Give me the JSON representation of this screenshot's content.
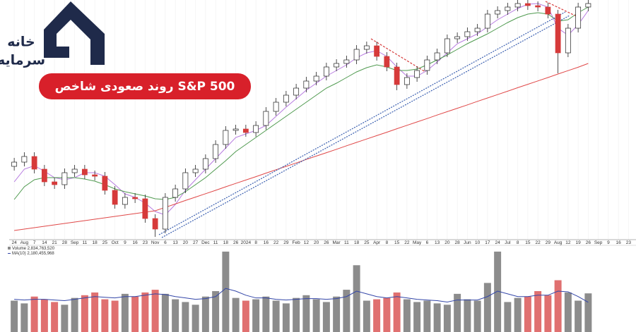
{
  "brand": {
    "line1": "خانه",
    "line2": "سرمایه"
  },
  "banner": {
    "title": "روند صعودی شاخص S&P 500"
  },
  "chart_data": {
    "type": "candlestick",
    "categories": [
      "24",
      "Aug",
      "7",
      "14",
      "21",
      "28",
      "Sep",
      "11",
      "18",
      "25",
      "Oct",
      "9",
      "16",
      "23",
      "Nov",
      "6",
      "13",
      "20",
      "27",
      "Dec",
      "11",
      "18",
      "26",
      "2024",
      "8",
      "16",
      "22",
      "29",
      "Feb",
      "12",
      "20",
      "26",
      "Mar",
      "11",
      "18",
      "25",
      "Apr",
      "8",
      "15",
      "22",
      "May",
      "6",
      "13",
      "20",
      "28",
      "Jun",
      "10",
      "17",
      "24",
      "Jul",
      "8",
      "15",
      "22",
      "29",
      "Aug",
      "12",
      "19",
      "26",
      "Sep",
      "9",
      "16",
      "23"
    ],
    "open": [
      4520,
      4550,
      4590,
      4500,
      4410,
      4390,
      4475,
      4500,
      4460,
      4450,
      4350,
      4250,
      4300,
      4290,
      4150,
      4075,
      4300,
      4360,
      4475,
      4500,
      4575,
      4675,
      4775,
      4785,
      4760,
      4810,
      4910,
      4975,
      5025,
      5075,
      5125,
      5160,
      5225,
      5250,
      5275,
      5350,
      5375,
      5300,
      5225,
      5100,
      5150,
      5200,
      5275,
      5325,
      5425,
      5440,
      5475,
      5500,
      5600,
      5625,
      5650,
      5675,
      5660,
      5650,
      5600,
      5325,
      5500,
      5650,
      null,
      null,
      null,
      null
    ],
    "high": [
      4580,
      4620,
      4620,
      4530,
      4440,
      4505,
      4530,
      4530,
      4490,
      4480,
      4380,
      4330,
      4330,
      4320,
      4180,
      4330,
      4390,
      4505,
      4530,
      4605,
      4705,
      4805,
      4815,
      4815,
      4840,
      4940,
      5005,
      5055,
      5105,
      5155,
      5190,
      5255,
      5280,
      5305,
      5380,
      5405,
      5405,
      5330,
      5255,
      5180,
      5230,
      5305,
      5355,
      5455,
      5470,
      5505,
      5530,
      5630,
      5655,
      5680,
      5700,
      5700,
      5690,
      5680,
      5630,
      5530,
      5680,
      5700,
      null,
      null,
      null,
      null
    ],
    "low": [
      4490,
      4520,
      4470,
      4380,
      4360,
      4360,
      4445,
      4430,
      4420,
      4320,
      4220,
      4220,
      4260,
      4120,
      4020,
      4045,
      4270,
      4330,
      4445,
      4470,
      4545,
      4645,
      4745,
      4730,
      4730,
      4780,
      4880,
      4945,
      4995,
      5045,
      5095,
      5130,
      5195,
      5220,
      5245,
      5320,
      5270,
      5195,
      5060,
      5070,
      5120,
      5170,
      5245,
      5295,
      5395,
      5410,
      5445,
      5470,
      5570,
      5595,
      5620,
      5630,
      5620,
      5570,
      5180,
      5295,
      5470,
      5620,
      null,
      null,
      null,
      null
    ],
    "close": [
      4550,
      4590,
      4500,
      4410,
      4390,
      4475,
      4500,
      4460,
      4450,
      4350,
      4250,
      4300,
      4290,
      4150,
      4075,
      4300,
      4360,
      4475,
      4500,
      4575,
      4675,
      4775,
      4785,
      4760,
      4810,
      4910,
      4975,
      5025,
      5075,
      5125,
      5160,
      5225,
      5250,
      5275,
      5350,
      5375,
      5300,
      5225,
      5100,
      5150,
      5200,
      5275,
      5325,
      5425,
      5440,
      5475,
      5500,
      5600,
      5625,
      5650,
      5675,
      5660,
      5650,
      5600,
      5325,
      5500,
      5650,
      5675,
      null,
      null,
      null,
      null
    ],
    "up_color": "#ffffff",
    "down_color": "#d63a3a",
    "ylim": [
      4000,
      5700
    ],
    "overlays": [
      {
        "color": "#b77be0",
        "values": [
          4410,
          4500,
          4525,
          4485,
          4440,
          4425,
          4440,
          4475,
          4475,
          4450,
          4390,
          4325,
          4300,
          4260,
          4200,
          4175,
          4250,
          4350,
          4425,
          4500,
          4575,
          4650,
          4725,
          4750,
          4775,
          4810,
          4875,
          4940,
          5000,
          5060,
          5110,
          5160,
          5200,
          5240,
          5290,
          5325,
          5340,
          5300,
          5225,
          5160,
          5160,
          5200,
          5260,
          5325,
          5390,
          5425,
          5460,
          5510,
          5560,
          5600,
          5640,
          5670,
          5675,
          5650,
          5500,
          5450,
          5525,
          5625,
          null,
          null,
          null,
          null
        ]
      },
      {
        "color": "#4f9a4f",
        "values": [
          4285,
          4375,
          4425,
          4440,
          4440,
          4440,
          4440,
          4430,
          4415,
          4390,
          4360,
          4340,
          4325,
          4310,
          4290,
          4285,
          4300,
          4340,
          4390,
          4440,
          4500,
          4560,
          4625,
          4675,
          4725,
          4775,
          4825,
          4875,
          4925,
          4975,
          5025,
          5075,
          5110,
          5150,
          5190,
          5220,
          5240,
          5225,
          5200,
          5200,
          5210,
          5240,
          5275,
          5310,
          5350,
          5390,
          5425,
          5460,
          5500,
          5540,
          5575,
          5600,
          5610,
          5600,
          5550,
          5560,
          5610,
          5650,
          null,
          null,
          null,
          null
        ]
      },
      {
        "color": "#e04848",
        "values": [
          4065,
          4075,
          4085,
          4095,
          4105,
          4115,
          4125,
          4135,
          4145,
          4155,
          4165,
          4175,
          4185,
          4195,
          4205,
          4229,
          4253,
          4278,
          4302,
          4326,
          4350,
          4375,
          4399,
          4423,
          4447,
          4472,
          4496,
          4520,
          4544,
          4569,
          4593,
          4617,
          4641,
          4666,
          4690,
          4714,
          4738,
          4762,
          4787,
          4811,
          4835,
          4859,
          4884,
          4908,
          4932,
          4956,
          4981,
          5005,
          5029,
          5053,
          5078,
          5102,
          5126,
          5150,
          5175,
          5199,
          5223,
          5250,
          null,
          null,
          null,
          null
        ]
      }
    ],
    "volume": {
      "label": "Volume 2,834,763,520",
      "ma_label": "MA(10) 2,180,455,968",
      "ylim": [
        0,
        6000000000
      ],
      "up_color": "#8c8c8c",
      "down_color": "#e07070",
      "ma_color": "#3346a8",
      "values": [
        2300000000,
        2100000000,
        2600000000,
        2400000000,
        2200000000,
        2000000000,
        2500000000,
        2700000000,
        2900000000,
        2400000000,
        2300000000,
        2800000000,
        2600000000,
        2900000000,
        3100000000,
        2800000000,
        2400000000,
        2200000000,
        2000000000,
        2600000000,
        3000000000,
        5900000000,
        2500000000,
        2300000000,
        2400000000,
        2600000000,
        2300000000,
        2100000000,
        2500000000,
        2700000000,
        2400000000,
        2200000000,
        2600000000,
        3100000000,
        4900000000,
        2300000000,
        2400000000,
        2500000000,
        2900000000,
        2400000000,
        2200000000,
        2300000000,
        2100000000,
        2000000000,
        2800000000,
        2400000000,
        2300000000,
        3600000000,
        5900000000,
        2200000000,
        2500000000,
        2600000000,
        3000000000,
        2700000000,
        3800000000,
        2900000000,
        2300000000,
        2834763520,
        null,
        null,
        null,
        null
      ],
      "ma_values": [
        2400000000,
        2350000000,
        2400000000,
        2400000000,
        2350000000,
        2300000000,
        2400000000,
        2500000000,
        2600000000,
        2550000000,
        2500000000,
        2600000000,
        2600000000,
        2700000000,
        2800000000,
        2750000000,
        2600000000,
        2500000000,
        2400000000,
        2450000000,
        2600000000,
        3200000000,
        3000000000,
        2700000000,
        2500000000,
        2500000000,
        2400000000,
        2350000000,
        2400000000,
        2450000000,
        2450000000,
        2400000000,
        2450000000,
        2600000000,
        3000000000,
        2800000000,
        2600000000,
        2500000000,
        2600000000,
        2500000000,
        2400000000,
        2350000000,
        2300000000,
        2200000000,
        2350000000,
        2350000000,
        2350000000,
        2600000000,
        3000000000,
        2800000000,
        2600000000,
        2600000000,
        2700000000,
        2700000000,
        3000000000,
        2950000000,
        2600000000,
        2180455968,
        null,
        null,
        null,
        null
      ]
    }
  }
}
